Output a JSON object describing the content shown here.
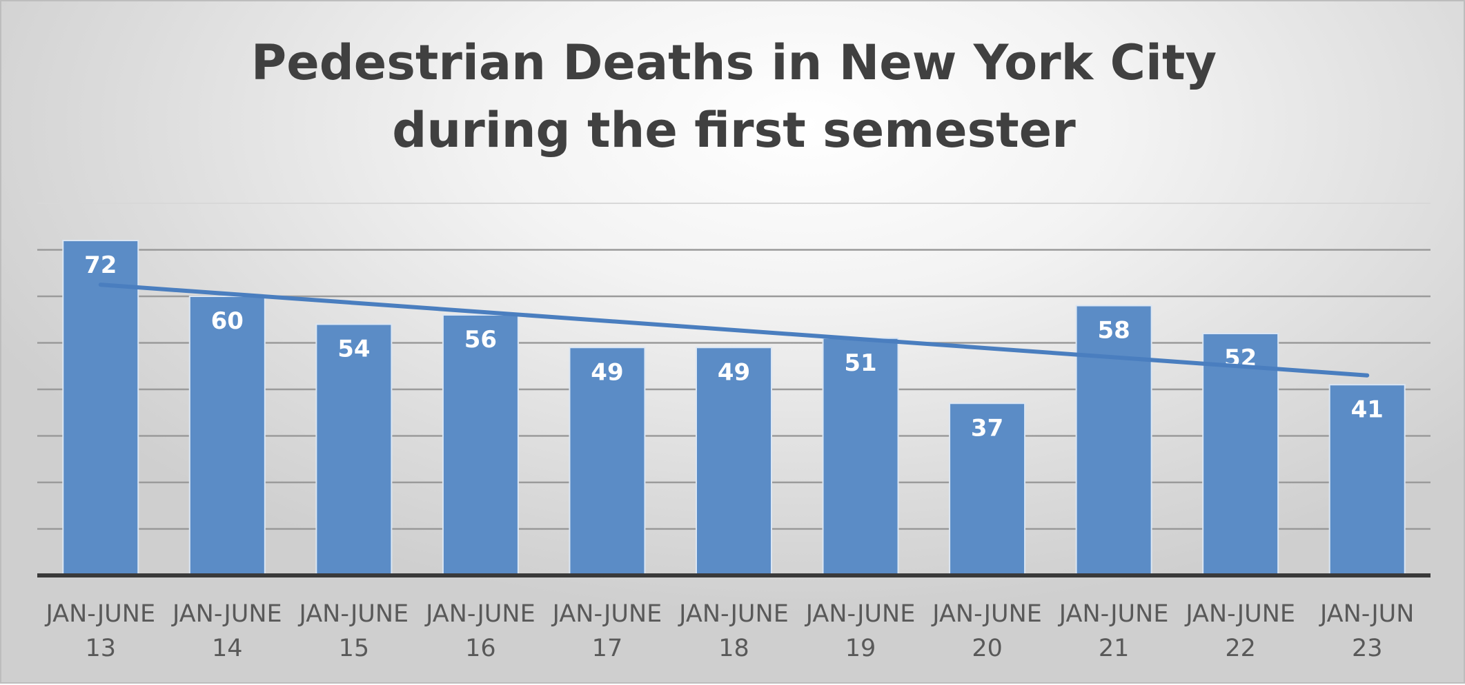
{
  "chart_data": {
    "type": "bar",
    "title": [
      "Pedestrian Deaths in New York City",
      "during the first semester"
    ],
    "categories": [
      [
        "JAN-JUNE",
        "13"
      ],
      [
        "JAN-JUNE",
        "14"
      ],
      [
        "JAN-JUNE",
        "15"
      ],
      [
        "JAN-JUNE",
        "16"
      ],
      [
        "JAN-JUNE",
        "17"
      ],
      [
        "JAN-JUNE",
        "18"
      ],
      [
        "JAN-JUNE",
        "19"
      ],
      [
        "JAN-JUNE",
        "20"
      ],
      [
        "JAN-JUNE",
        "21"
      ],
      [
        "JAN-JUNE",
        "22"
      ],
      [
        "JAN-JUN",
        "23"
      ]
    ],
    "values": [
      72,
      60,
      54,
      56,
      49,
      49,
      51,
      37,
      58,
      52,
      41
    ],
    "trendline": {
      "type": "linear",
      "start": 62.5,
      "end": 43
    },
    "ylim": [
      0,
      80
    ],
    "y_gridline_step": 10,
    "grid": true,
    "legend": "none",
    "data_labels": true,
    "colors": {
      "bar": "#5b8cc6",
      "bar_border": "#dbe6f3",
      "trendline": "#4a7ebf",
      "gridline": "#9a9a9a",
      "axis": "#3a3a3a",
      "title": "#404040"
    }
  }
}
